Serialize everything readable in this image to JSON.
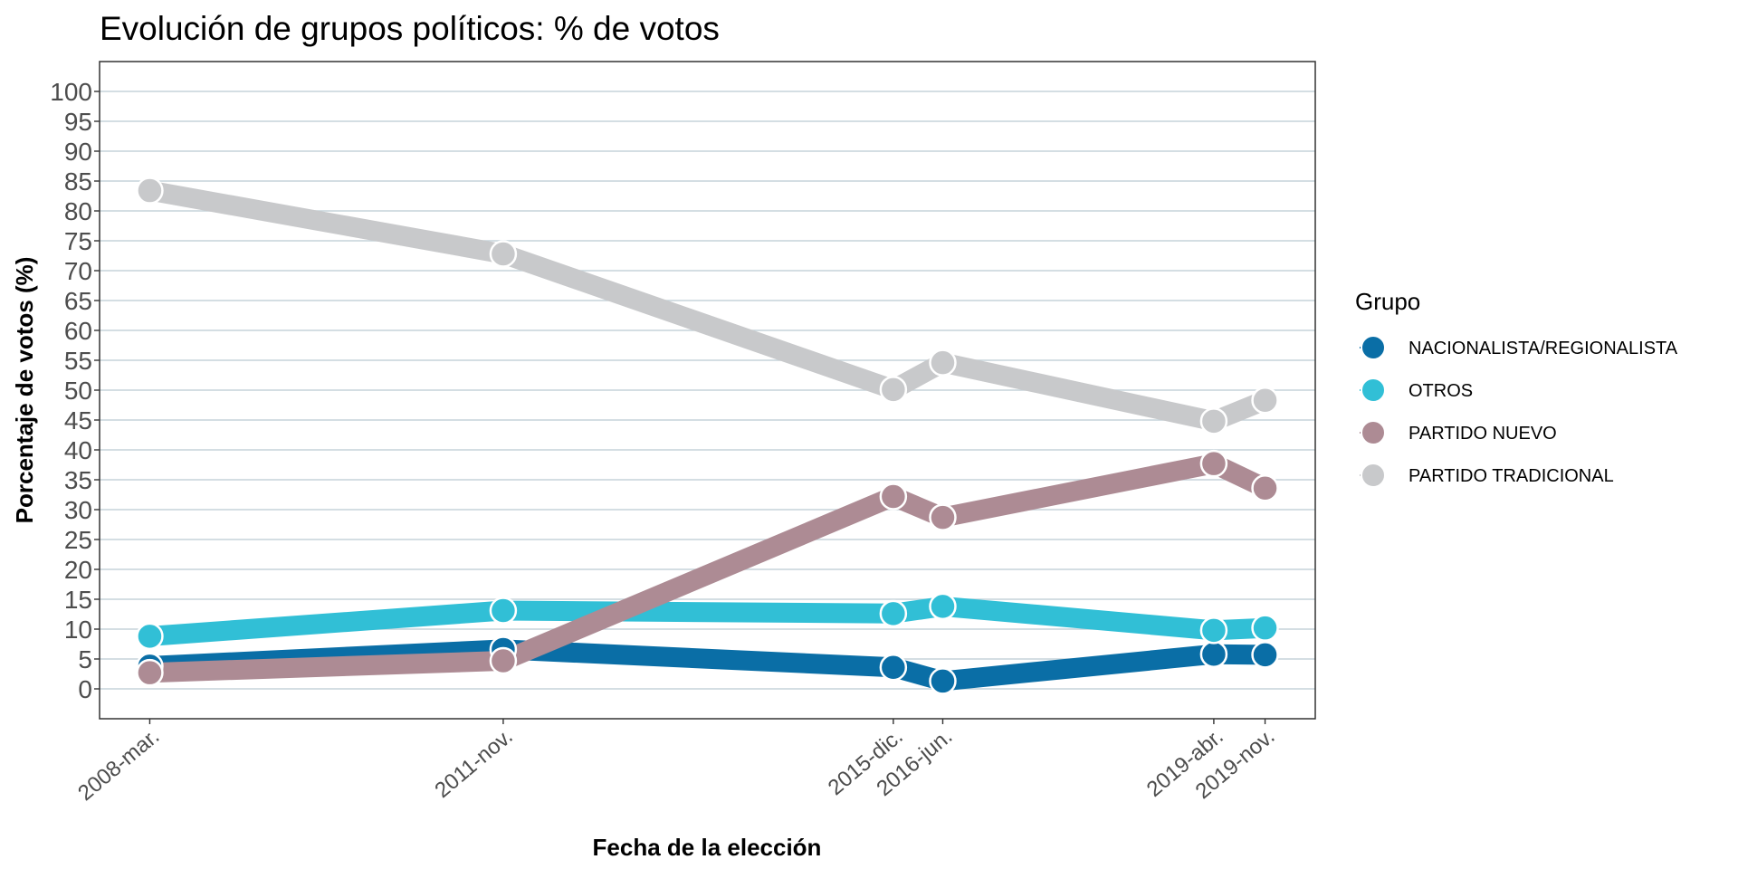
{
  "chart_data": {
    "type": "line",
    "title": "Evolución de grupos políticos: % de votos",
    "xlabel": "Fecha de la elección",
    "ylabel": "Porcentaje de votos (%)",
    "x": [
      "2008-03-09",
      "2011-11-20",
      "2015-12-20",
      "2016-06-26",
      "2019-04-28",
      "2019-11-10"
    ],
    "x_tick_labels": [
      "2008-mar.",
      "2011-nov.",
      "2015-dic.",
      "2016-jun.",
      "2019-abr.",
      "2019-nov."
    ],
    "ylim": [
      -5,
      105
    ],
    "y_ticks": [
      0,
      5,
      10,
      15,
      20,
      25,
      30,
      35,
      40,
      45,
      50,
      55,
      60,
      65,
      70,
      75,
      80,
      85,
      90,
      95,
      100
    ],
    "grid": true,
    "legend_title": "Grupo",
    "legend_position": "right",
    "series": [
      {
        "name": "NACIONALISTA/REGIONALISTA",
        "color": "#0a6ea6",
        "values": [
          3.8,
          6.6,
          3.6,
          1.3,
          5.8,
          5.7
        ]
      },
      {
        "name": "OTROS",
        "color": "#31bfd6",
        "values": [
          8.8,
          13.1,
          12.6,
          13.8,
          9.8,
          10.2
        ]
      },
      {
        "name": "PARTIDO NUEVO",
        "color": "#ad8b94",
        "values": [
          2.7,
          4.7,
          32.2,
          28.7,
          37.7,
          33.6
        ]
      },
      {
        "name": "PARTIDO TRADICIONAL",
        "color": "#c8c9cb",
        "values": [
          83.4,
          72.8,
          50.1,
          54.6,
          44.8,
          48.3
        ]
      }
    ]
  }
}
